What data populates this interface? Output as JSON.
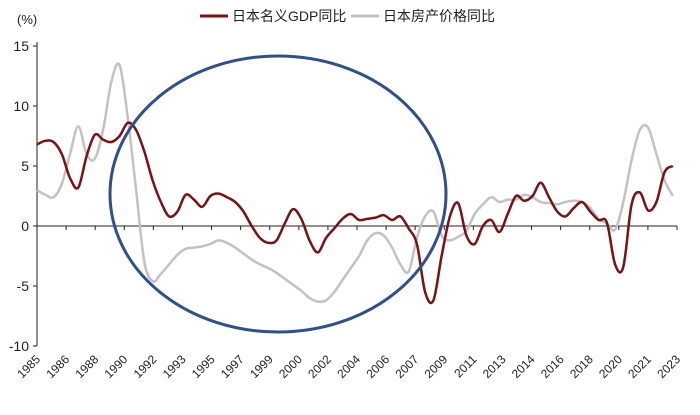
{
  "chart_data": {
    "type": "line",
    "unit_label": "(%)",
    "ylim": [
      -10,
      15
    ],
    "yticks": [
      15,
      10,
      5,
      0,
      -5,
      -10
    ],
    "xlim": [
      1985,
      2023.75
    ],
    "xtick_labels": [
      "1985",
      "1986",
      "1988",
      "1990",
      "1992",
      "1993",
      "1995",
      "1997",
      "1999",
      "2000",
      "2002",
      "2004",
      "2006",
      "2007",
      "2009",
      "2011",
      "2013",
      "2014",
      "2016",
      "2018",
      "2020",
      "2021",
      "2023"
    ],
    "legend_position": "top-center",
    "colors": {
      "gdp": "#7b1113",
      "house": "#c2c2c2",
      "ellipse": "#2f4f8f"
    },
    "series": [
      {
        "key": "gdp",
        "name": "日本名义GDP同比",
        "x": [
          1985.0,
          1985.5,
          1986.0,
          1986.5,
          1987.0,
          1987.5,
          1988.0,
          1988.5,
          1989.0,
          1989.5,
          1990.0,
          1990.5,
          1991.0,
          1991.5,
          1992.0,
          1992.5,
          1993.0,
          1993.5,
          1994.0,
          1994.5,
          1995.0,
          1995.5,
          1996.0,
          1996.5,
          1997.0,
          1997.5,
          1998.0,
          1998.5,
          1999.0,
          1999.5,
          2000.0,
          2000.5,
          2001.0,
          2001.5,
          2002.0,
          2002.5,
          2003.0,
          2003.5,
          2004.0,
          2004.5,
          2005.0,
          2005.5,
          2006.0,
          2006.5,
          2007.0,
          2007.5,
          2008.0,
          2008.5,
          2009.0,
          2009.5,
          2010.0,
          2010.5,
          2011.0,
          2011.5,
          2012.0,
          2012.5,
          2013.0,
          2013.5,
          2014.0,
          2014.5,
          2015.0,
          2015.5,
          2016.0,
          2016.5,
          2017.0,
          2017.5,
          2018.0,
          2018.5,
          2019.0,
          2019.5,
          2020.0,
          2020.5,
          2021.0,
          2021.5,
          2022.0,
          2022.5,
          2023.0,
          2023.5
        ],
        "values": [
          6.8,
          7.1,
          7.0,
          6.0,
          4.0,
          3.2,
          5.8,
          7.6,
          7.2,
          7.0,
          7.5,
          8.6,
          8.0,
          6.2,
          3.8,
          2.0,
          0.8,
          1.2,
          2.6,
          2.2,
          1.6,
          2.5,
          2.7,
          2.4,
          2.0,
          1.2,
          0.0,
          -1.0,
          -1.4,
          -1.2,
          0.2,
          1.4,
          0.6,
          -1.2,
          -2.2,
          -1.0,
          -0.2,
          0.6,
          1.0,
          0.5,
          0.6,
          0.7,
          0.9,
          0.5,
          0.8,
          -0.2,
          -1.5,
          -5.5,
          -6.2,
          -2.5,
          0.8,
          1.9,
          -0.8,
          -1.5,
          0.0,
          0.5,
          -0.5,
          1.0,
          2.5,
          2.1,
          2.5,
          3.6,
          2.4,
          1.2,
          0.8,
          1.5,
          2.0,
          1.2,
          0.5,
          0.3,
          -3.2,
          -3.4,
          1.8,
          2.8,
          1.3,
          2.0,
          4.5,
          5.0
        ]
      },
      {
        "key": "house",
        "name": "日本房产价格同比",
        "x": [
          1985.0,
          1985.5,
          1986.0,
          1986.5,
          1987.0,
          1987.5,
          1988.0,
          1988.5,
          1989.0,
          1989.5,
          1990.0,
          1990.5,
          1991.0,
          1991.5,
          1992.0,
          1992.5,
          1993.0,
          1993.5,
          1994.0,
          1994.5,
          1995.0,
          1995.5,
          1996.0,
          1996.5,
          1997.0,
          1997.5,
          1998.0,
          1998.5,
          1999.0,
          1999.5,
          2000.0,
          2000.5,
          2001.0,
          2001.5,
          2002.0,
          2002.5,
          2003.0,
          2003.5,
          2004.0,
          2004.5,
          2005.0,
          2005.5,
          2006.0,
          2006.5,
          2007.0,
          2007.5,
          2008.0,
          2008.5,
          2009.0,
          2009.5,
          2010.0,
          2010.5,
          2011.0,
          2011.5,
          2012.0,
          2012.5,
          2013.0,
          2013.5,
          2014.0,
          2014.5,
          2015.0,
          2015.5,
          2016.0,
          2016.5,
          2017.0,
          2017.5,
          2018.0,
          2018.5,
          2019.0,
          2019.5,
          2020.0,
          2020.5,
          2021.0,
          2021.5,
          2022.0,
          2022.5,
          2023.0,
          2023.5
        ],
        "values": [
          3.0,
          2.6,
          2.4,
          3.5,
          6.0,
          8.3,
          6.0,
          5.6,
          8.0,
          12.0,
          13.4,
          9.0,
          3.0,
          -3.0,
          -4.6,
          -4.0,
          -3.2,
          -2.4,
          -1.9,
          -1.8,
          -1.7,
          -1.5,
          -1.2,
          -1.4,
          -1.8,
          -2.3,
          -2.8,
          -3.2,
          -3.5,
          -3.9,
          -4.4,
          -4.9,
          -5.4,
          -6.0,
          -6.3,
          -6.2,
          -5.5,
          -4.5,
          -3.5,
          -2.5,
          -1.2,
          -0.6,
          -0.8,
          -1.8,
          -3.2,
          -3.8,
          -1.0,
          0.8,
          1.2,
          -0.8,
          -1.2,
          -0.9,
          -0.4,
          1.0,
          1.8,
          2.4,
          2.0,
          2.2,
          2.2,
          2.6,
          2.4,
          2.0,
          1.9,
          1.8,
          2.0,
          2.1,
          2.0,
          1.5,
          0.6,
          0.2,
          -0.3,
          2.0,
          5.5,
          8.0,
          8.2,
          6.0,
          3.8,
          2.5
        ]
      }
    ]
  }
}
